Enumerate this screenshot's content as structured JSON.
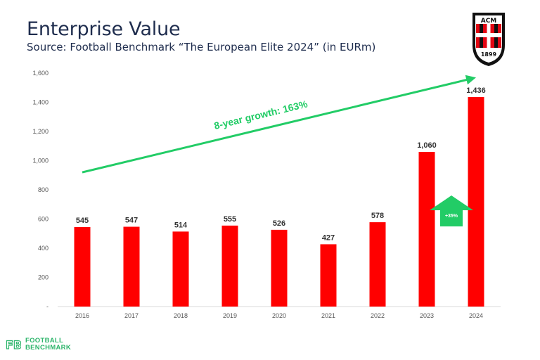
{
  "header": {
    "title": "Enterprise Value",
    "subtitle": "Source: Football Benchmark “The European Elite 2024” (in EURm)"
  },
  "chart_data": {
    "type": "bar",
    "categories": [
      "2016",
      "2017",
      "2018",
      "2019",
      "2020",
      "2021",
      "2022",
      "2023",
      "2024"
    ],
    "values": [
      545,
      547,
      514,
      555,
      526,
      427,
      578,
      1060,
      1436
    ],
    "value_labels": [
      "545",
      "547",
      "514",
      "555",
      "526",
      "427",
      "578",
      "1,060",
      "1,436"
    ],
    "y_ticks": [
      0,
      200,
      400,
      600,
      800,
      1000,
      1200,
      1400,
      1600
    ],
    "y_tick_labels": [
      "-",
      "200",
      "400",
      "600",
      "800",
      "1,000",
      "1,200",
      "1,400",
      "1,600"
    ],
    "ylim": [
      0,
      1600
    ],
    "grid": false,
    "bar_color": "#ff0000",
    "annotations": [
      {
        "type": "trend-arrow",
        "text": "8-year growth: 163%",
        "color": "#22cc66",
        "from": {
          "x": "2016",
          "y": 920
        },
        "to": {
          "x": "2024",
          "y": 1570
        }
      },
      {
        "type": "up-arrow",
        "text": "+35%",
        "color": "#22cc66",
        "between": [
          "2023",
          "2024"
        ]
      }
    ]
  },
  "footer": {
    "logo_mark": "FB",
    "logo_line1": "FOOTBALL",
    "logo_line2": "BENCHMARK",
    "accent": "#2db56b"
  },
  "crest": {
    "letters": "ACM",
    "year": "1899"
  }
}
